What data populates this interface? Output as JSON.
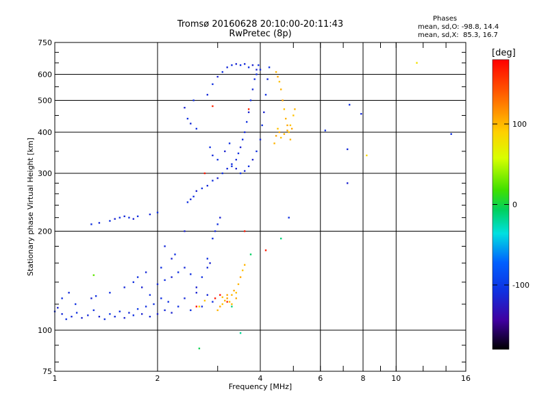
{
  "chart_data": {
    "type": "scatter",
    "title": "Tromsø 20160628 20:10:00-20:11:43",
    "subtitle": "RwPretec (8p)",
    "xlabel": "Frequency [MHz]",
    "ylabel": "Stationary phase Virtual Height [km]",
    "x_scale": "log",
    "y_scale": "log",
    "xlim": [
      1,
      16
    ],
    "ylim": [
      75,
      750
    ],
    "x_ticks": [
      "1",
      "2",
      "4",
      "6",
      "8",
      "10",
      "16"
    ],
    "y_ticks": [
      "75",
      "100",
      "200",
      "300",
      "400",
      "500",
      "600",
      "750"
    ],
    "grid": true,
    "phase_info": {
      "heading": "Phases",
      "o_line": "mean, sd,O: -98.8, 14.4",
      "x_line": "mean, sd,X:  85.3, 16.7"
    },
    "colorbar": {
      "label": "[deg]",
      "range": [
        -180,
        180
      ],
      "ticks": [
        "100",
        "0",
        "-100"
      ]
    },
    "series": [
      {
        "points": [
          [
            1.0,
            114,
            -100
          ],
          [
            1.02,
            117,
            -110
          ],
          [
            1.05,
            112,
            -105
          ],
          [
            1.08,
            108,
            -100
          ],
          [
            1.12,
            110,
            -105
          ],
          [
            1.16,
            113,
            -100
          ],
          [
            1.2,
            109,
            -110
          ],
          [
            1.25,
            111,
            -105
          ],
          [
            1.3,
            115,
            -100
          ],
          [
            1.35,
            110,
            -110
          ],
          [
            1.4,
            108,
            -100
          ],
          [
            1.45,
            112,
            -95
          ],
          [
            1.5,
            110,
            -105
          ],
          [
            1.55,
            114,
            -100
          ],
          [
            1.6,
            109,
            -110
          ],
          [
            1.65,
            113,
            -105
          ],
          [
            1.7,
            111,
            -100
          ],
          [
            1.75,
            116,
            -95
          ],
          [
            1.8,
            112,
            -110
          ],
          [
            1.85,
            118,
            -100
          ],
          [
            1.9,
            110,
            -105
          ],
          [
            1.95,
            120,
            -100
          ],
          [
            2.0,
            112,
            -110
          ],
          [
            2.05,
            125,
            -100
          ],
          [
            2.1,
            115,
            -105
          ],
          [
            2.15,
            122,
            -100
          ],
          [
            2.2,
            113,
            -110
          ],
          [
            2.3,
            118,
            -100
          ],
          [
            2.4,
            125,
            -105
          ],
          [
            2.5,
            115,
            -100
          ],
          [
            2.6,
            130,
            -110
          ],
          [
            2.7,
            118,
            -100
          ],
          [
            2.8,
            128,
            -105
          ],
          [
            2.9,
            122,
            -100
          ],
          [
            1.05,
            125,
            -100
          ],
          [
            1.1,
            130,
            -105
          ],
          [
            1.15,
            120,
            -100
          ],
          [
            1.28,
            125,
            -110
          ],
          [
            1.32,
            127,
            -100
          ],
          [
            1.45,
            130,
            -100
          ],
          [
            1.6,
            135,
            -105
          ],
          [
            1.7,
            140,
            -100
          ],
          [
            1.8,
            135,
            -110
          ],
          [
            1.9,
            128,
            -100
          ],
          [
            2.0,
            138,
            -105
          ],
          [
            2.1,
            142,
            -100
          ],
          [
            2.2,
            145,
            -110
          ],
          [
            2.3,
            150,
            -100
          ],
          [
            2.4,
            155,
            -105
          ],
          [
            2.5,
            148,
            -100
          ],
          [
            2.6,
            135,
            -110
          ],
          [
            2.7,
            145,
            -100
          ],
          [
            2.8,
            155,
            -105
          ],
          [
            1.75,
            145,
            -100
          ],
          [
            1.85,
            150,
            -105
          ],
          [
            2.05,
            155,
            -100
          ],
          [
            2.2,
            165,
            -110
          ],
          [
            2.25,
            170,
            -100
          ],
          [
            2.1,
            180,
            -105
          ],
          [
            2.8,
            165,
            -100
          ],
          [
            2.85,
            160,
            -110
          ],
          [
            2.9,
            190,
            -100
          ],
          [
            2.95,
            200,
            -105
          ],
          [
            3.0,
            210,
            -100
          ],
          [
            3.05,
            220,
            -110
          ],
          [
            1.28,
            210,
            -100
          ],
          [
            1.35,
            212,
            -105
          ],
          [
            1.45,
            215,
            -100
          ],
          [
            1.5,
            218,
            -110
          ],
          [
            1.55,
            220,
            -100
          ],
          [
            1.6,
            222,
            -105
          ],
          [
            1.65,
            220,
            -100
          ],
          [
            1.7,
            218,
            -110
          ],
          [
            1.75,
            222,
            -100
          ],
          [
            1.9,
            225,
            -105
          ],
          [
            2.0,
            228,
            -100
          ],
          [
            2.45,
            245,
            -100
          ],
          [
            2.5,
            250,
            -105
          ],
          [
            2.55,
            255,
            -100
          ],
          [
            2.6,
            265,
            -110
          ],
          [
            2.7,
            270,
            -100
          ],
          [
            2.8,
            275,
            -105
          ],
          [
            2.9,
            285,
            -100
          ],
          [
            3.0,
            290,
            -110
          ],
          [
            3.1,
            300,
            -100
          ],
          [
            3.2,
            310,
            -105
          ],
          [
            3.3,
            315,
            -100
          ],
          [
            3.4,
            310,
            -110
          ],
          [
            3.5,
            300,
            -100
          ],
          [
            3.6,
            305,
            -105
          ],
          [
            3.7,
            315,
            -100
          ],
          [
            3.8,
            330,
            -110
          ],
          [
            3.9,
            350,
            -100
          ],
          [
            4.0,
            380,
            -105
          ],
          [
            4.05,
            420,
            -100
          ],
          [
            4.1,
            460,
            -110
          ],
          [
            4.15,
            520,
            -100
          ],
          [
            4.2,
            580,
            -105
          ],
          [
            4.25,
            630,
            -100
          ],
          [
            3.3,
            320,
            -100
          ],
          [
            3.4,
            330,
            -105
          ],
          [
            3.45,
            345,
            -100
          ],
          [
            3.5,
            360,
            -110
          ],
          [
            3.55,
            380,
            -100
          ],
          [
            3.6,
            400,
            -105
          ],
          [
            3.65,
            430,
            -100
          ],
          [
            3.7,
            460,
            -110
          ],
          [
            3.75,
            500,
            -100
          ],
          [
            3.8,
            540,
            -105
          ],
          [
            3.85,
            580,
            -100
          ],
          [
            3.9,
            620,
            -110
          ],
          [
            3.95,
            640,
            -100
          ],
          [
            2.6,
            410,
            -100
          ],
          [
            2.5,
            425,
            -105
          ],
          [
            2.45,
            440,
            -100
          ],
          [
            2.4,
            475,
            -110
          ],
          [
            2.55,
            500,
            -100
          ],
          [
            2.8,
            520,
            -105
          ],
          [
            2.9,
            560,
            -100
          ],
          [
            3.0,
            590,
            -110
          ],
          [
            3.1,
            610,
            -100
          ],
          [
            3.2,
            630,
            -105
          ],
          [
            3.3,
            640,
            -100
          ],
          [
            3.4,
            645,
            -110
          ],
          [
            3.5,
            640,
            -100
          ],
          [
            3.6,
            645,
            -105
          ],
          [
            3.7,
            630,
            -100
          ],
          [
            3.8,
            640,
            -110
          ],
          [
            3.9,
            600,
            -100
          ],
          [
            4.0,
            620,
            -105
          ],
          [
            2.85,
            360,
            -100
          ],
          [
            2.9,
            340,
            -105
          ],
          [
            3.0,
            330,
            -100
          ],
          [
            3.15,
            350,
            -110
          ],
          [
            3.25,
            370,
            -100
          ],
          [
            6.2,
            405,
            -100
          ],
          [
            7.2,
            355,
            -105
          ],
          [
            7.2,
            280,
            -110
          ],
          [
            7.3,
            485,
            -100
          ],
          [
            7.9,
            455,
            -105
          ],
          [
            14.5,
            395,
            -100
          ],
          [
            2.4,
            200,
            -110
          ],
          [
            4.85,
            220,
            -100
          ]
        ]
      },
      {
        "points": [
          [
            4.45,
            610,
            110
          ],
          [
            4.5,
            590,
            115
          ],
          [
            4.55,
            570,
            105
          ],
          [
            4.6,
            540,
            110
          ],
          [
            4.65,
            500,
            115
          ],
          [
            4.7,
            470,
            105
          ],
          [
            4.75,
            440,
            110
          ],
          [
            4.8,
            420,
            115
          ],
          [
            4.85,
            400,
            105
          ],
          [
            4.9,
            380,
            110
          ],
          [
            4.95,
            410,
            115
          ],
          [
            5.0,
            450,
            105
          ],
          [
            5.05,
            470,
            110
          ],
          [
            4.55,
            400,
            115
          ],
          [
            4.6,
            385,
            105
          ],
          [
            4.7,
            395,
            110
          ],
          [
            4.8,
            405,
            115
          ],
          [
            4.9,
            420,
            105
          ],
          [
            4.4,
            370,
            110
          ],
          [
            4.45,
            390,
            115
          ],
          [
            4.5,
            410,
            105
          ],
          [
            3.0,
            115,
            110
          ],
          [
            3.05,
            118,
            115
          ],
          [
            3.1,
            120,
            105
          ],
          [
            3.15,
            123,
            110
          ],
          [
            3.2,
            125,
            115
          ],
          [
            3.25,
            122,
            105
          ],
          [
            3.3,
            128,
            110
          ],
          [
            3.35,
            132,
            115
          ],
          [
            3.4,
            130,
            105
          ],
          [
            3.45,
            138,
            110
          ],
          [
            3.5,
            145,
            115
          ],
          [
            3.55,
            152,
            105
          ],
          [
            3.6,
            158,
            110
          ],
          [
            3.2,
            128,
            115
          ],
          [
            3.1,
            126,
            105
          ],
          [
            3.3,
            120,
            110
          ],
          [
            3.4,
            125,
            115
          ],
          [
            11.5,
            650,
            90
          ],
          [
            8.2,
            340,
            95
          ],
          [
            2.65,
            118,
            100
          ],
          [
            2.75,
            123,
            105
          ]
        ]
      },
      {
        "points": [
          [
            2.95,
            125,
            170
          ],
          [
            3.05,
            128,
            175
          ],
          [
            3.2,
            122,
            165
          ],
          [
            4.15,
            175,
            170
          ],
          [
            3.7,
            470,
            165
          ],
          [
            3.6,
            200,
            170
          ],
          [
            2.6,
            118,
            175
          ],
          [
            2.9,
            480,
            165
          ],
          [
            2.75,
            300,
            170
          ]
        ]
      },
      {
        "points": [
          [
            3.75,
            170,
            -10
          ],
          [
            4.6,
            190,
            -15
          ],
          [
            2.65,
            88,
            -5
          ],
          [
            3.5,
            98,
            -20
          ],
          [
            3.3,
            118,
            -15
          ],
          [
            1.3,
            147,
            30
          ]
        ]
      }
    ]
  }
}
